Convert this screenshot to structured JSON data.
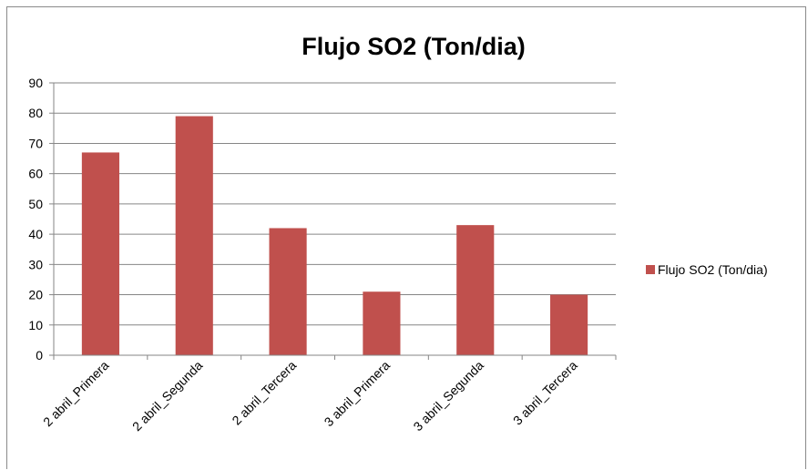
{
  "chart_data": {
    "type": "bar",
    "title": "Flujo SO2 (Ton/dia)",
    "categories": [
      "2 abril_Primera",
      "2 abril_Segunda",
      "2 abril_Tercera",
      "3 abril_Primera",
      "3 abril_Segunda",
      "3 abril_Tercera"
    ],
    "series": [
      {
        "name": "Flujo SO2 (Ton/dia)",
        "values": [
          67,
          79,
          42,
          21,
          43,
          20
        ],
        "color": "#C0504D"
      }
    ],
    "xlabel": "",
    "ylabel": "",
    "ylim": [
      0,
      90
    ],
    "yticks": [
      "0",
      "10",
      "20",
      "30",
      "40",
      "50",
      "60",
      "70",
      "80",
      "90"
    ],
    "grid": true,
    "legend_position": "right"
  }
}
